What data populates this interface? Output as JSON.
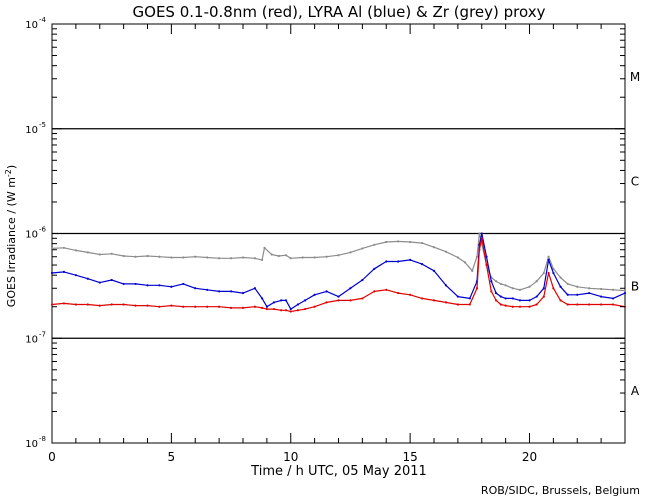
{
  "chart_data": {
    "type": "line",
    "title": "GOES 0.1-0.8nm (red), LYRA Al (blue) & Zr (grey) proxy",
    "xlabel": "Time / h UTC, 05 May 2011",
    "ylabel": "GOES Irradiance / (W m",
    "ylabel_sup": "-2",
    "ylabel_close": ")",
    "credit": "ROB/SIDC, Brussels, Belgium",
    "xlim": [
      0,
      24
    ],
    "x_ticks": [
      0,
      5,
      10,
      15,
      20
    ],
    "x_tick_labels": [
      "0",
      "5",
      "10",
      "15",
      "20"
    ],
    "y_scale": "log",
    "ylim": [
      1e-08,
      0.0001
    ],
    "y_ticks": [
      1e-08,
      1e-07,
      1e-06,
      1e-05,
      0.0001
    ],
    "y_tick_labels": [
      {
        "base": "10",
        "exp": "-8"
      },
      {
        "base": "10",
        "exp": "-7"
      },
      {
        "base": "10",
        "exp": "-6"
      },
      {
        "base": "10",
        "exp": "-5"
      },
      {
        "base": "10",
        "exp": "-4"
      }
    ],
    "class_lines": [
      1e-07,
      1e-06,
      1e-05
    ],
    "flare_classes": [
      {
        "label": "A",
        "value": 3.2e-08
      },
      {
        "label": "B",
        "value": 3.2e-07
      },
      {
        "label": "C",
        "value": 3.2e-06
      },
      {
        "label": "M",
        "value": 3.2e-05
      }
    ],
    "series": [
      {
        "name": "LYRA Zr proxy",
        "color": "#8c8c8c",
        "x": [
          0,
          0.5,
          1,
          1.5,
          2,
          2.5,
          3,
          3.5,
          4,
          4.5,
          5,
          5.5,
          6,
          6.5,
          7,
          7.5,
          8,
          8.5,
          8.8,
          8.9,
          9.2,
          9.5,
          9.8,
          10,
          10.5,
          11,
          11.5,
          12,
          12.5,
          13,
          13.5,
          14,
          14.5,
          15,
          15.5,
          16,
          16.5,
          17,
          17.3,
          17.6,
          17.8,
          17.9,
          18.0,
          18.2,
          18.4,
          18.6,
          18.8,
          19,
          19.3,
          19.6,
          20,
          20.3,
          20.6,
          20.8,
          21,
          21.3,
          21.6,
          22,
          22.5,
          23,
          23.5,
          24
        ],
        "y": [
          7.2e-07,
          7.3e-07,
          6.9e-07,
          6.6e-07,
          6.3e-07,
          6.4e-07,
          6.1e-07,
          6e-07,
          6.1e-07,
          6e-07,
          5.9e-07,
          5.9e-07,
          6e-07,
          5.9e-07,
          5.8e-07,
          5.8e-07,
          5.9e-07,
          5.8e-07,
          5.6e-07,
          7.3e-07,
          6.3e-07,
          6.1e-07,
          6.2e-07,
          5.8e-07,
          5.9e-07,
          5.9e-07,
          6e-07,
          6.2e-07,
          6.6e-07,
          7.2e-07,
          7.8e-07,
          8.3e-07,
          8.4e-07,
          8.3e-07,
          8.1e-07,
          7.4e-07,
          6.7e-07,
          5.9e-07,
          5.3e-07,
          4.4e-07,
          6e-07,
          1e-06,
          8e-07,
          5e-07,
          3.8e-07,
          3.5e-07,
          3.3e-07,
          3.2e-07,
          3e-07,
          2.9e-07,
          3.1e-07,
          3.5e-07,
          4.2e-07,
          6e-07,
          4.6e-07,
          3.8e-07,
          3.3e-07,
          3.1e-07,
          3e-07,
          2.95e-07,
          2.9e-07,
          2.85e-07
        ]
      },
      {
        "name": "LYRA Al proxy",
        "color": "#0000d0",
        "x": [
          0,
          0.5,
          1,
          1.5,
          2,
          2.5,
          3,
          3.5,
          4,
          4.5,
          5,
          5.5,
          6,
          6.5,
          7,
          7.5,
          8,
          8.5,
          8.8,
          9.0,
          9.3,
          9.6,
          9.8,
          10.0,
          10.3,
          10.6,
          11,
          11.5,
          12,
          12.5,
          13,
          13.5,
          14,
          14.5,
          15,
          15.5,
          16,
          16.5,
          17,
          17.5,
          17.8,
          17.9,
          18.0,
          18.2,
          18.4,
          18.6,
          18.8,
          19,
          19.3,
          19.6,
          20,
          20.3,
          20.6,
          20.8,
          21,
          21.3,
          21.6,
          22,
          22.5,
          23,
          23.5,
          24
        ],
        "y": [
          4.2e-07,
          4.3e-07,
          4e-07,
          3.7e-07,
          3.4e-07,
          3.6e-07,
          3.3e-07,
          3.3e-07,
          3.2e-07,
          3.2e-07,
          3.1e-07,
          3.3e-07,
          3e-07,
          2.9e-07,
          2.8e-07,
          2.8e-07,
          2.7e-07,
          3e-07,
          2.4e-07,
          2e-07,
          2.2e-07,
          2.3e-07,
          2.3e-07,
          1.9e-07,
          2.1e-07,
          2.3e-07,
          2.6e-07,
          2.8e-07,
          2.5e-07,
          3e-07,
          3.6e-07,
          4.6e-07,
          5.4e-07,
          5.4e-07,
          5.6e-07,
          5.1e-07,
          4.4e-07,
          3.2e-07,
          2.5e-07,
          2.4e-07,
          3.5e-07,
          7.8e-07,
          1e-06,
          6e-07,
          3.5e-07,
          2.7e-07,
          2.5e-07,
          2.4e-07,
          2.4e-07,
          2.3e-07,
          2.3e-07,
          2.5e-07,
          3e-07,
          5.6e-07,
          4.2e-07,
          3.1e-07,
          2.6e-07,
          2.6e-07,
          2.7e-07,
          2.5e-07,
          2.4e-07,
          2.7e-07
        ]
      },
      {
        "name": "GOES 0.1-0.8nm",
        "color": "#e00000",
        "x": [
          0,
          0.5,
          1,
          1.5,
          2,
          2.5,
          3,
          3.5,
          4,
          4.5,
          5,
          5.5,
          6,
          6.5,
          7,
          7.5,
          8,
          8.5,
          8.8,
          9.0,
          9.3,
          9.6,
          9.8,
          10.0,
          10.3,
          10.6,
          11,
          11.5,
          12,
          12.5,
          13,
          13.5,
          14,
          14.5,
          15,
          15.5,
          16,
          16.5,
          17,
          17.5,
          17.8,
          17.9,
          18.0,
          18.2,
          18.4,
          18.6,
          18.8,
          19,
          19.3,
          19.6,
          20,
          20.3,
          20.6,
          20.8,
          21,
          21.3,
          21.6,
          22,
          22.5,
          23,
          23.5,
          24
        ],
        "y": [
          2.1e-07,
          2.15e-07,
          2.1e-07,
          2.1e-07,
          2.05e-07,
          2.1e-07,
          2.1e-07,
          2.05e-07,
          2.05e-07,
          2e-07,
          2.05e-07,
          2e-07,
          2e-07,
          2e-07,
          2e-07,
          1.95e-07,
          1.95e-07,
          2e-07,
          1.95e-07,
          1.9e-07,
          1.9e-07,
          1.85e-07,
          1.85e-07,
          1.8e-07,
          1.85e-07,
          1.9e-07,
          2e-07,
          2.2e-07,
          2.3e-07,
          2.3e-07,
          2.4e-07,
          2.8e-07,
          2.9e-07,
          2.7e-07,
          2.6e-07,
          2.4e-07,
          2.3e-07,
          2.2e-07,
          2.1e-07,
          2.1e-07,
          3e-07,
          7e-07,
          9e-07,
          5e-07,
          2.8e-07,
          2.3e-07,
          2.1e-07,
          2.05e-07,
          2e-07,
          2e-07,
          2e-07,
          2.1e-07,
          2.5e-07,
          4.2e-07,
          3e-07,
          2.3e-07,
          2.1e-07,
          2.1e-07,
          2.1e-07,
          2.1e-07,
          2.1e-07,
          2e-07
        ]
      }
    ]
  }
}
